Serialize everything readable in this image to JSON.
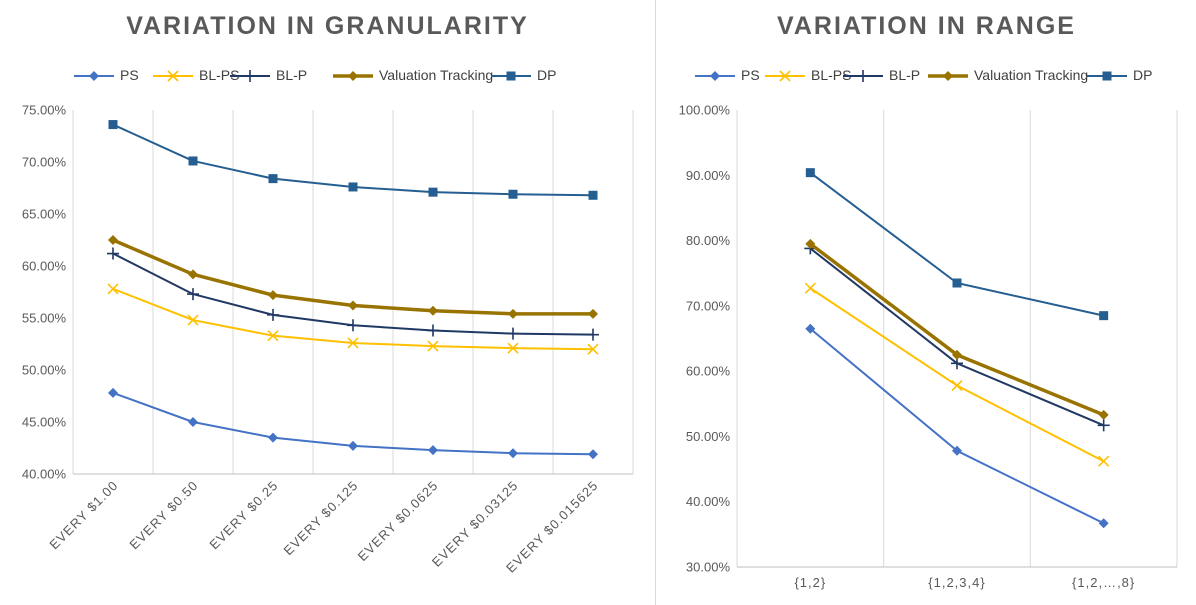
{
  "chart_data": [
    {
      "type": "line",
      "title": "VARIATION IN GRANULARITY",
      "xlabel": "",
      "ylabel": "",
      "categories": [
        "EVERY $1.00",
        "EVERY $0.50",
        "EVERY $0.25",
        "EVERY $0.125",
        "EVERY $0.0625",
        "EVERY $0.03125",
        "EVERY $0.015625"
      ],
      "ylim": [
        40,
        75
      ],
      "yticks": [
        "40.00%",
        "45.00%",
        "50.00%",
        "55.00%",
        "60.00%",
        "65.00%",
        "70.00%",
        "75.00%"
      ],
      "grid": "vertical",
      "legend_position": "top",
      "series": [
        {
          "name": "PS",
          "color": "#4472C4",
          "marker": "diamond",
          "values": [
            47.8,
            45.0,
            43.5,
            42.7,
            42.3,
            42.0,
            41.9
          ]
        },
        {
          "name": "BL-PS",
          "color": "#FFC000",
          "marker": "x",
          "values": [
            57.8,
            54.8,
            53.3,
            52.6,
            52.3,
            52.1,
            52.0
          ]
        },
        {
          "name": "BL-P",
          "color": "#203864",
          "marker": "plus",
          "values": [
            61.2,
            57.3,
            55.3,
            54.3,
            53.8,
            53.5,
            53.4
          ]
        },
        {
          "name": "Valuation Tracking",
          "color": "#997300",
          "marker": "diamond",
          "values": [
            62.5,
            59.2,
            57.2,
            56.2,
            55.7,
            55.4,
            55.4
          ]
        },
        {
          "name": "DP",
          "color": "#255E91",
          "marker": "square",
          "values": [
            73.6,
            70.1,
            68.4,
            67.6,
            67.1,
            66.9,
            66.8
          ]
        }
      ]
    },
    {
      "type": "line",
      "title": "VARIATION IN RANGE",
      "xlabel": "",
      "ylabel": "",
      "categories": [
        "{1,2}",
        "{1,2,3,4}",
        "{1,2,…,8}"
      ],
      "ylim": [
        30,
        100
      ],
      "yticks": [
        "30.00%",
        "40.00%",
        "50.00%",
        "60.00%",
        "70.00%",
        "80.00%",
        "90.00%",
        "100.00%"
      ],
      "grid": "vertical",
      "legend_position": "top",
      "series": [
        {
          "name": "PS",
          "color": "#4472C4",
          "marker": "diamond",
          "values": [
            66.5,
            47.8,
            36.7
          ]
        },
        {
          "name": "BL-PS",
          "color": "#FFC000",
          "marker": "x",
          "values": [
            72.7,
            57.8,
            46.2
          ]
        },
        {
          "name": "BL-P",
          "color": "#203864",
          "marker": "plus",
          "values": [
            78.8,
            61.2,
            51.7
          ]
        },
        {
          "name": "Valuation Tracking",
          "color": "#997300",
          "marker": "diamond",
          "values": [
            79.5,
            62.5,
            53.3
          ]
        },
        {
          "name": "DP",
          "color": "#255E91",
          "marker": "square",
          "values": [
            90.4,
            73.5,
            68.5
          ]
        }
      ]
    }
  ]
}
